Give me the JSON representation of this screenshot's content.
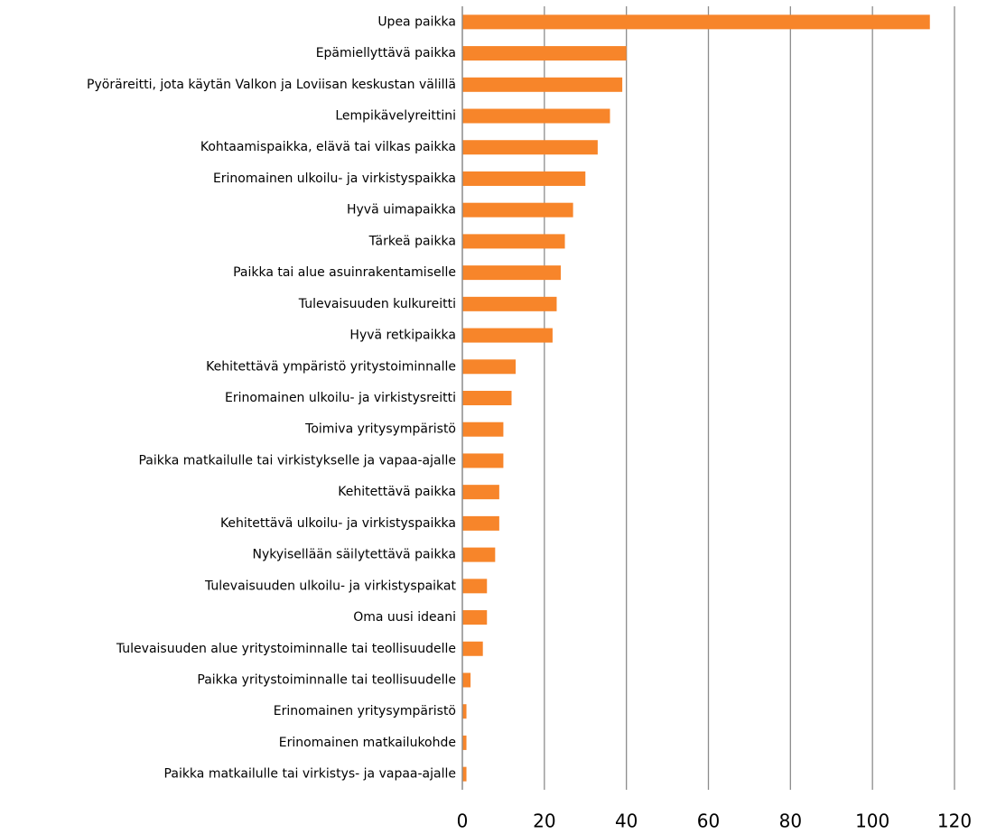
{
  "chart_data": {
    "type": "barh",
    "categories": [
      "Upea paikka",
      "Epämiellyttävä paikka",
      "Pyöräreitti, jota käytän Valkon ja Loviisan keskustan välillä",
      "Lempikävelyreittini",
      "Kohtaamispaikka, elävä tai vilkas paikka",
      "Erinomainen ulkoilu- ja virkistyspaikka",
      "Hyvä uimapaikka",
      "Tärkeä paikka",
      "Paikka tai alue asuinrakentamiselle",
      "Tulevaisuuden kulkureitti",
      "Hyvä retkipaikka",
      "Kehitettävä ympäristö yritystoiminnalle",
      "Erinomainen ulkoilu- ja virkistysreitti",
      "Toimiva yritysympäristö",
      "Paikka matkailulle tai virkistykselle ja vapaa-ajalle",
      "Kehitettävä paikka",
      "Kehitettävä ulkoilu- ja virkistyspaikka",
      "Nykyisellään säilytettävä paikka",
      "Tulevaisuuden ulkoilu- ja virkistyspaikat",
      "Oma uusi ideani",
      "Tulevaisuuden alue yritystoiminnalle tai teollisuudelle",
      "Paikka yritystoiminnalle tai teollisuudelle",
      "Erinomainen yritysympäristö",
      "Erinomainen matkailukohde",
      "Paikka matkailulle tai virkistys- ja vapaa-ajalle"
    ],
    "values": [
      114,
      40,
      39,
      36,
      33,
      30,
      27,
      25,
      24,
      23,
      22,
      13,
      12,
      10,
      10,
      9,
      9,
      8,
      6,
      6,
      5,
      2,
      1,
      1,
      1
    ],
    "color": "#f7852a",
    "xlim": [
      0,
      120
    ],
    "xticks": [
      0,
      20,
      40,
      60,
      80,
      100,
      120
    ],
    "grid": true
  }
}
